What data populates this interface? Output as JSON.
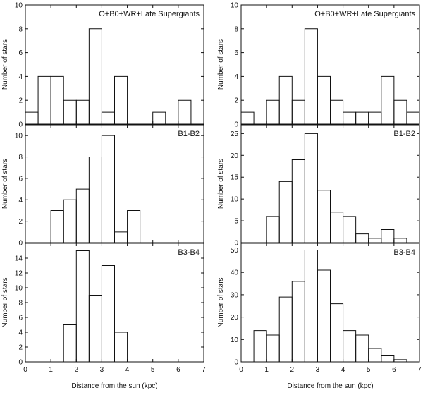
{
  "figure": {
    "xlabel": "Distance from the sun (kpc)",
    "ylabel": "Number of stars"
  },
  "chart_data": [
    {
      "type": "histogram",
      "column": "left",
      "row": 0,
      "label": "O+B0+WR+Late Supergiants",
      "bin_width": 0.5,
      "xlim": [
        0,
        7
      ],
      "ylim": [
        0,
        10
      ],
      "yticks": [
        0,
        2,
        4,
        6,
        8,
        10
      ],
      "bins": [
        [
          0.25,
          1
        ],
        [
          0.75,
          4
        ],
        [
          1.25,
          4
        ],
        [
          1.75,
          2
        ],
        [
          2.25,
          2
        ],
        [
          2.75,
          8
        ],
        [
          3.25,
          1
        ],
        [
          3.75,
          4
        ],
        [
          4.25,
          0
        ],
        [
          4.75,
          0
        ],
        [
          5.25,
          1
        ],
        [
          5.75,
          0
        ],
        [
          6.25,
          2
        ],
        [
          6.75,
          0
        ]
      ],
      "xlabel": "",
      "ylabel": "Number of stars",
      "xticks": [],
      "xticks_labeled": false
    },
    {
      "type": "histogram",
      "column": "left",
      "row": 1,
      "label": "B1-B2",
      "bin_width": 0.5,
      "xlim": [
        0,
        7
      ],
      "ylim": [
        0,
        11
      ],
      "yticks": [
        0,
        2,
        4,
        6,
        8,
        10
      ],
      "bins": [
        [
          1.25,
          3
        ],
        [
          1.75,
          4
        ],
        [
          2.25,
          5
        ],
        [
          2.75,
          8
        ],
        [
          3.25,
          10
        ],
        [
          3.75,
          1
        ],
        [
          4.25,
          3
        ],
        [
          4.75,
          0
        ]
      ],
      "xlabel": "",
      "ylabel": "Number of stars",
      "xticks": [],
      "xticks_labeled": false
    },
    {
      "type": "histogram",
      "column": "left",
      "row": 2,
      "label": "B3-B4",
      "bin_width": 0.5,
      "xlim": [
        0,
        7
      ],
      "ylim": [
        0,
        16
      ],
      "yticks": [
        0,
        2,
        4,
        6,
        8,
        10,
        12,
        14
      ],
      "bins": [
        [
          1.75,
          5
        ],
        [
          2.25,
          15
        ],
        [
          2.75,
          9
        ],
        [
          3.25,
          13
        ],
        [
          3.75,
          4
        ],
        [
          4.25,
          0
        ]
      ],
      "xlabel": "Distance from the sun (kpc)",
      "ylabel": "Number of stars",
      "xticks": [
        0,
        1,
        2,
        3,
        4,
        5,
        6,
        7
      ],
      "xticks_labeled": true
    },
    {
      "type": "histogram",
      "column": "right",
      "row": 0,
      "label": "O+B0+WR+Late Supergiants",
      "bin_width": 0.5,
      "xlim": [
        0,
        7
      ],
      "ylim": [
        0,
        10
      ],
      "yticks": [
        0,
        2,
        4,
        6,
        8,
        10
      ],
      "bins": [
        [
          0.25,
          1
        ],
        [
          0.75,
          0
        ],
        [
          1.25,
          2
        ],
        [
          1.75,
          4
        ],
        [
          2.25,
          2
        ],
        [
          2.75,
          8
        ],
        [
          3.25,
          4
        ],
        [
          3.75,
          2
        ],
        [
          4.25,
          1
        ],
        [
          4.75,
          1
        ],
        [
          5.25,
          1
        ],
        [
          5.75,
          4
        ],
        [
          6.25,
          2
        ],
        [
          6.75,
          1
        ]
      ],
      "xlabel": "",
      "ylabel": "Number of stars",
      "xticks": [],
      "xticks_labeled": false
    },
    {
      "type": "histogram",
      "column": "right",
      "row": 1,
      "label": "B1-B2",
      "bin_width": 0.5,
      "xlim": [
        0,
        7
      ],
      "ylim": [
        0,
        27
      ],
      "yticks": [
        0,
        5,
        10,
        15,
        20,
        25
      ],
      "bins": [
        [
          1.25,
          6
        ],
        [
          1.75,
          14
        ],
        [
          2.25,
          19
        ],
        [
          2.75,
          25
        ],
        [
          3.25,
          12
        ],
        [
          3.75,
          7
        ],
        [
          4.25,
          6
        ],
        [
          4.75,
          2
        ],
        [
          5.25,
          1
        ],
        [
          5.75,
          3
        ],
        [
          6.25,
          1
        ]
      ],
      "xlabel": "",
      "ylabel": "Number of stars",
      "xticks": [],
      "xticks_labeled": false
    },
    {
      "type": "histogram",
      "column": "right",
      "row": 2,
      "label": "B3-B4",
      "bin_width": 0.5,
      "xlim": [
        0,
        7
      ],
      "ylim": [
        0,
        53
      ],
      "yticks": [
        0,
        10,
        20,
        30,
        40,
        50
      ],
      "bins": [
        [
          0.75,
          14
        ],
        [
          1.25,
          12
        ],
        [
          1.75,
          29
        ],
        [
          2.25,
          36
        ],
        [
          2.75,
          50
        ],
        [
          3.25,
          41
        ],
        [
          3.75,
          26
        ],
        [
          4.25,
          14
        ],
        [
          4.75,
          12
        ],
        [
          5.25,
          6
        ],
        [
          5.75,
          3
        ],
        [
          6.25,
          1
        ]
      ],
      "xlabel": "Distance from the sun (kpc)",
      "ylabel": "Number of stars",
      "xticks": [
        0,
        1,
        2,
        3,
        4,
        5,
        6,
        7
      ],
      "xticks_labeled": true
    }
  ]
}
